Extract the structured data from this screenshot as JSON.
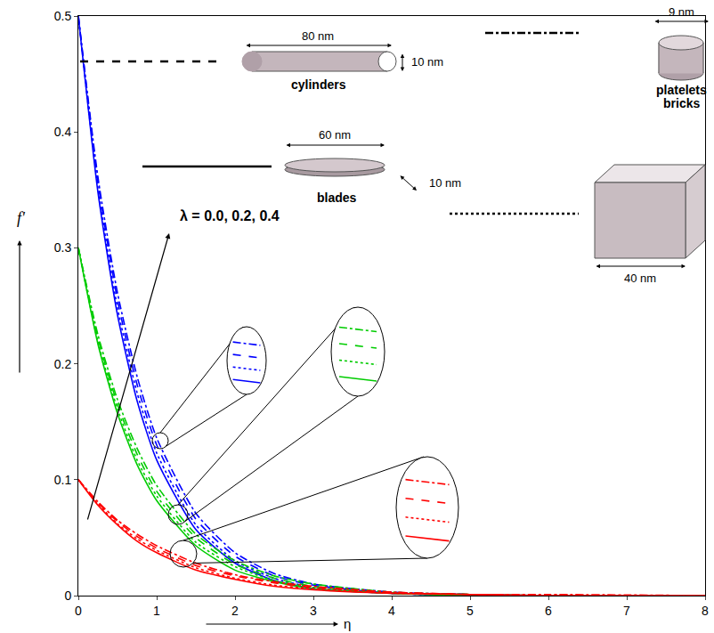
{
  "chart_data": {
    "type": "line",
    "x_label": "η",
    "y_label": "f'",
    "x": [
      0,
      0.25,
      0.5,
      0.75,
      1,
      1.5,
      2,
      2.5,
      3,
      4,
      5,
      6,
      8
    ],
    "series": [
      {
        "color": "#0000ff",
        "line_style": "dashdot",
        "values": [
          0.5,
          0.361,
          0.261,
          0.189,
          0.136,
          0.071,
          0.037,
          0.019,
          0.01,
          0.003,
          0.001,
          0,
          0
        ]
      },
      {
        "color": "#0000ff",
        "line_style": "dash",
        "values": [
          0.5,
          0.357,
          0.255,
          0.182,
          0.13,
          0.066,
          0.034,
          0.017,
          0.009,
          0.002,
          0.001,
          0,
          0
        ]
      },
      {
        "color": "#0000ff",
        "line_style": "dot",
        "values": [
          0.5,
          0.352,
          0.248,
          0.175,
          0.123,
          0.061,
          0.03,
          0.015,
          0.007,
          0.002,
          0,
          0,
          0
        ]
      },
      {
        "color": "#0000ff",
        "line_style": "solid",
        "values": [
          0.5,
          0.348,
          0.242,
          0.168,
          0.117,
          0.057,
          0.028,
          0.013,
          0.006,
          0.002,
          0,
          0,
          0
        ]
      },
      {
        "color": "#00cc00",
        "line_style": "dashdot",
        "values": [
          0.3,
          0.225,
          0.169,
          0.127,
          0.095,
          0.053,
          0.03,
          0.017,
          0.01,
          0.003,
          0.001,
          0,
          0
        ]
      },
      {
        "color": "#00cc00",
        "line_style": "dash",
        "values": [
          0.3,
          0.222,
          0.165,
          0.122,
          0.09,
          0.05,
          0.027,
          0.015,
          0.008,
          0.002,
          0.001,
          0,
          0
        ]
      },
      {
        "color": "#00cc00",
        "line_style": "dot",
        "values": [
          0.3,
          0.219,
          0.161,
          0.117,
          0.086,
          0.046,
          0.025,
          0.013,
          0.007,
          0.002,
          0.001,
          0,
          0
        ]
      },
      {
        "color": "#00cc00",
        "line_style": "solid",
        "values": [
          0.3,
          0.217,
          0.157,
          0.113,
          0.082,
          0.043,
          0.022,
          0.012,
          0.006,
          0.002,
          0,
          0,
          0
        ]
      },
      {
        "color": "#ff0000",
        "line_style": "dashdot",
        "values": [
          0.1,
          0.081,
          0.065,
          0.053,
          0.043,
          0.028,
          0.018,
          0.012,
          0.008,
          0.003,
          0.001,
          0.001,
          0
        ]
      },
      {
        "color": "#ff0000",
        "line_style": "dash",
        "values": [
          0.1,
          0.08,
          0.064,
          0.051,
          0.041,
          0.026,
          0.017,
          0.011,
          0.007,
          0.003,
          0.001,
          0,
          0
        ]
      },
      {
        "color": "#ff0000",
        "line_style": "dot",
        "values": [
          0.1,
          0.079,
          0.062,
          0.049,
          0.039,
          0.024,
          0.015,
          0.009,
          0.006,
          0.002,
          0.001,
          0,
          0
        ]
      },
      {
        "color": "#ff0000",
        "line_style": "solid",
        "values": [
          0.1,
          0.078,
          0.061,
          0.047,
          0.037,
          0.022,
          0.014,
          0.008,
          0.005,
          0.002,
          0.001,
          0,
          0
        ]
      }
    ],
    "xlim": [
      0,
      8
    ],
    "ylim": [
      0,
      0.5
    ],
    "xticks": [
      0,
      1,
      2,
      3,
      4,
      5,
      6,
      7,
      8
    ],
    "yticks": [
      0,
      0.1,
      0.2,
      0.3,
      0.4,
      0.5
    ],
    "grid": false,
    "annotations": [
      "λ = 0.0, 0.2, 0.4"
    ],
    "particle_shapes": [
      {
        "label": "cylinders",
        "dimensions": [
          "80 nm",
          "10 nm"
        ],
        "line_style": "dash"
      },
      {
        "label": "blades",
        "dimensions": [
          "60 nm",
          "10 nm"
        ],
        "line_style": "solid"
      },
      {
        "label": "platelets",
        "dimensions": [
          "9 nm"
        ],
        "line_style": "dashdot"
      },
      {
        "label": "bricks",
        "dimensions": [
          "40 nm"
        ],
        "line_style": "dot"
      }
    ]
  }
}
